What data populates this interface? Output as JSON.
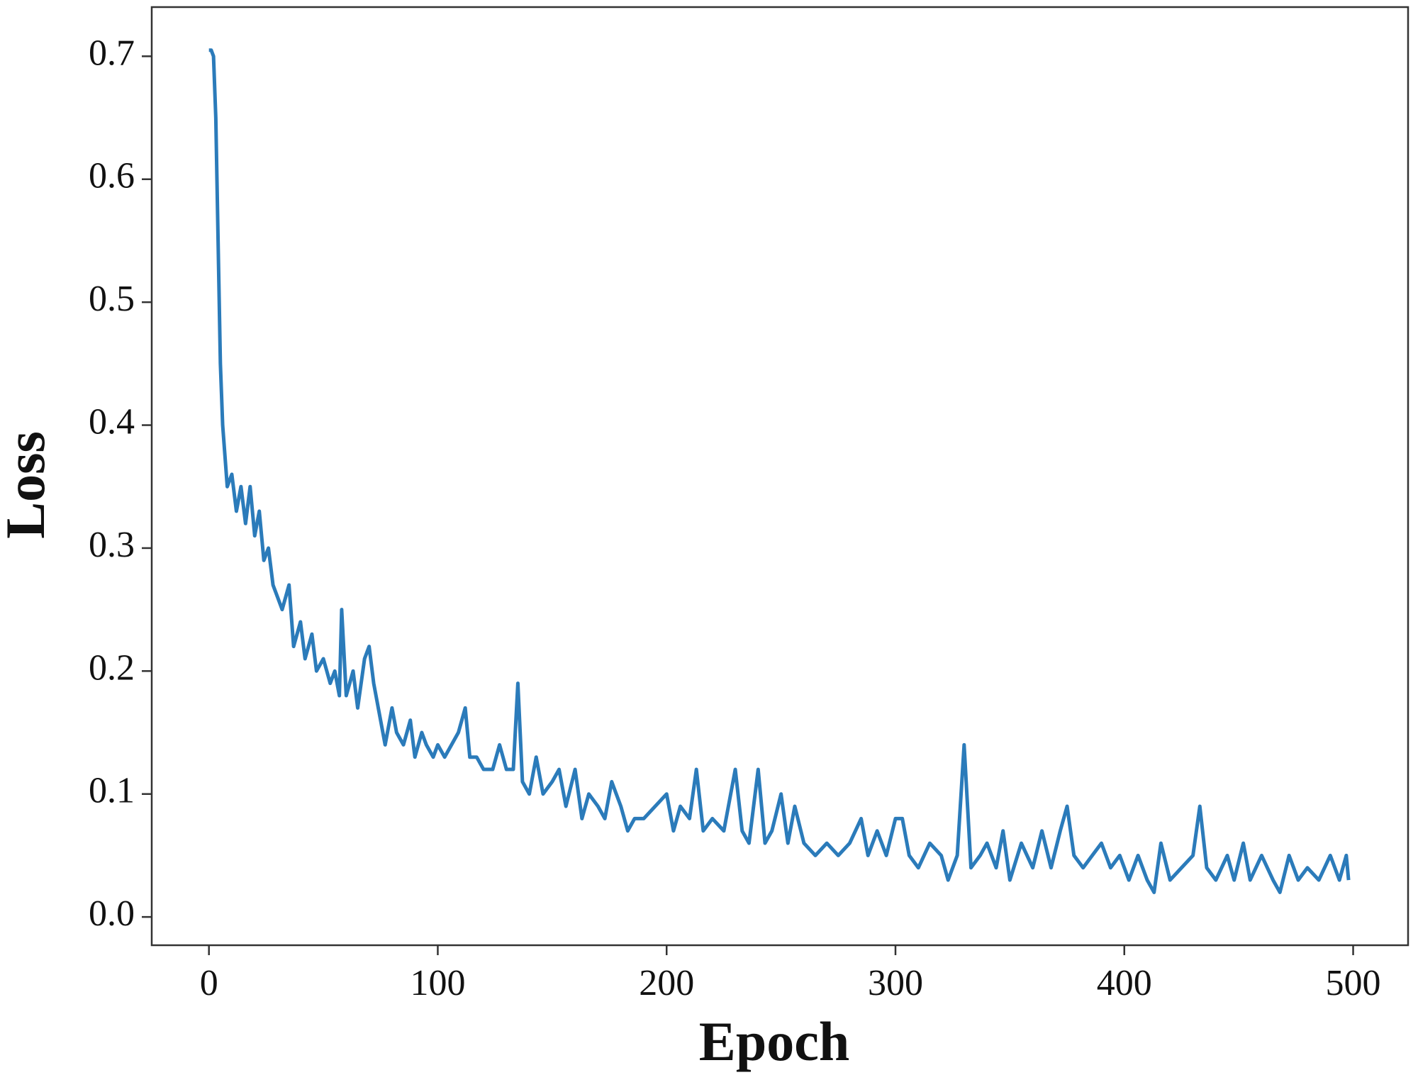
{
  "chart_data": {
    "type": "line",
    "x_label": "Epoch",
    "y_label": "Loss",
    "x": [
      0,
      1,
      2,
      3,
      4,
      5,
      6,
      8,
      10,
      12,
      14,
      16,
      18,
      20,
      22,
      24,
      26,
      28,
      30,
      32,
      35,
      37,
      40,
      42,
      45,
      47,
      50,
      53,
      55,
      57,
      58,
      60,
      63,
      65,
      68,
      70,
      72,
      75,
      77,
      80,
      82,
      85,
      88,
      90,
      93,
      95,
      98,
      100,
      103,
      106,
      109,
      112,
      114,
      117,
      120,
      124,
      127,
      130,
      133,
      135,
      137,
      140,
      143,
      146,
      150,
      153,
      156,
      160,
      163,
      166,
      170,
      173,
      176,
      180,
      183,
      186,
      190,
      195,
      200,
      203,
      206,
      210,
      213,
      216,
      220,
      225,
      230,
      233,
      236,
      240,
      243,
      246,
      250,
      253,
      256,
      260,
      265,
      270,
      275,
      280,
      285,
      288,
      292,
      296,
      300,
      303,
      306,
      310,
      315,
      320,
      323,
      327,
      330,
      333,
      337,
      340,
      344,
      347,
      350,
      355,
      360,
      364,
      368,
      372,
      375,
      378,
      382,
      386,
      390,
      394,
      398,
      402,
      406,
      410,
      413,
      416,
      420,
      425,
      430,
      433,
      436,
      440,
      445,
      448,
      452,
      455,
      460,
      465,
      468,
      472,
      476,
      480,
      485,
      490,
      494,
      497,
      498
    ],
    "series": [
      {
        "name": "Loss",
        "color": "#2b7bba",
        "values": [
          0.705,
          0.705,
          0.7,
          0.65,
          0.55,
          0.45,
          0.4,
          0.35,
          0.36,
          0.33,
          0.35,
          0.32,
          0.35,
          0.31,
          0.33,
          0.29,
          0.3,
          0.27,
          0.26,
          0.25,
          0.27,
          0.22,
          0.24,
          0.21,
          0.23,
          0.2,
          0.21,
          0.19,
          0.2,
          0.18,
          0.25,
          0.18,
          0.2,
          0.17,
          0.21,
          0.22,
          0.19,
          0.16,
          0.14,
          0.17,
          0.15,
          0.14,
          0.16,
          0.13,
          0.15,
          0.14,
          0.13,
          0.14,
          0.13,
          0.14,
          0.15,
          0.17,
          0.13,
          0.13,
          0.12,
          0.12,
          0.14,
          0.12,
          0.12,
          0.19,
          0.11,
          0.1,
          0.13,
          0.1,
          0.11,
          0.12,
          0.09,
          0.12,
          0.08,
          0.1,
          0.09,
          0.08,
          0.11,
          0.09,
          0.07,
          0.08,
          0.08,
          0.09,
          0.1,
          0.07,
          0.09,
          0.08,
          0.12,
          0.07,
          0.08,
          0.07,
          0.12,
          0.07,
          0.06,
          0.12,
          0.06,
          0.07,
          0.1,
          0.06,
          0.09,
          0.06,
          0.05,
          0.06,
          0.05,
          0.06,
          0.08,
          0.05,
          0.07,
          0.05,
          0.08,
          0.08,
          0.05,
          0.04,
          0.06,
          0.05,
          0.03,
          0.05,
          0.14,
          0.04,
          0.05,
          0.06,
          0.04,
          0.07,
          0.03,
          0.06,
          0.04,
          0.07,
          0.04,
          0.07,
          0.09,
          0.05,
          0.04,
          0.05,
          0.06,
          0.04,
          0.05,
          0.03,
          0.05,
          0.03,
          0.02,
          0.06,
          0.03,
          0.04,
          0.05,
          0.09,
          0.04,
          0.03,
          0.05,
          0.03,
          0.06,
          0.03,
          0.05,
          0.03,
          0.02,
          0.05,
          0.03,
          0.04,
          0.03,
          0.05,
          0.03,
          0.05,
          0.03
        ]
      }
    ],
    "xlim": [
      -25,
      524
    ],
    "ylim": [
      -0.023,
      0.74
    ],
    "xticks": [
      0,
      100,
      200,
      300,
      400,
      500
    ],
    "yticks": [
      {
        "value": 0,
        "label": "0.0"
      },
      0.1,
      0.2,
      0.3,
      0.4,
      0.5,
      0.6,
      0.7
    ],
    "grid": false
  }
}
